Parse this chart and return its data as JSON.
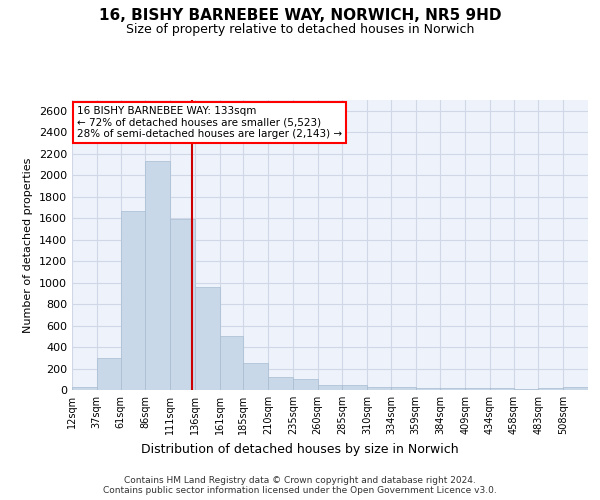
{
  "title_line1": "16, BISHY BARNEBEE WAY, NORWICH, NR5 9HD",
  "title_line2": "Size of property relative to detached houses in Norwich",
  "xlabel": "Distribution of detached houses by size in Norwich",
  "ylabel": "Number of detached properties",
  "footer_line1": "Contains HM Land Registry data © Crown copyright and database right 2024.",
  "footer_line2": "Contains public sector information licensed under the Open Government Licence v3.0.",
  "annotation_line1": "16 BISHY BARNEBEE WAY: 133sqm",
  "annotation_line2": "← 72% of detached houses are smaller (5,523)",
  "annotation_line3": "28% of semi-detached houses are larger (2,143) →",
  "property_size": 133,
  "bar_color": "#c8d8e8",
  "bar_edgecolor": "#a8bcd0",
  "redline_color": "#cc0000",
  "grid_color": "#d0d8e8",
  "background_color": "#eef2fb",
  "categories": [
    "12sqm",
    "37sqm",
    "61sqm",
    "86sqm",
    "111sqm",
    "136sqm",
    "161sqm",
    "185sqm",
    "210sqm",
    "235sqm",
    "260sqm",
    "285sqm",
    "310sqm",
    "334sqm",
    "359sqm",
    "384sqm",
    "409sqm",
    "434sqm",
    "458sqm",
    "483sqm",
    "508sqm"
  ],
  "values": [
    25,
    300,
    1670,
    2130,
    1590,
    960,
    500,
    250,
    120,
    100,
    50,
    50,
    30,
    30,
    20,
    20,
    20,
    20,
    10,
    20,
    25
  ],
  "bin_edges_sqm": [
    12,
    37,
    61,
    86,
    111,
    136,
    161,
    185,
    210,
    235,
    260,
    285,
    310,
    334,
    359,
    384,
    409,
    434,
    458,
    483,
    508,
    533
  ],
  "ylim": [
    0,
    2700
  ],
  "yticks": [
    0,
    200,
    400,
    600,
    800,
    1000,
    1200,
    1400,
    1600,
    1800,
    2000,
    2200,
    2400,
    2600
  ],
  "title_fontsize": 11,
  "subtitle_fontsize": 9,
  "ylabel_fontsize": 8,
  "xlabel_fontsize": 9,
  "tick_fontsize": 8,
  "xtick_fontsize": 7,
  "footer_fontsize": 6.5,
  "annotation_fontsize": 7.5
}
